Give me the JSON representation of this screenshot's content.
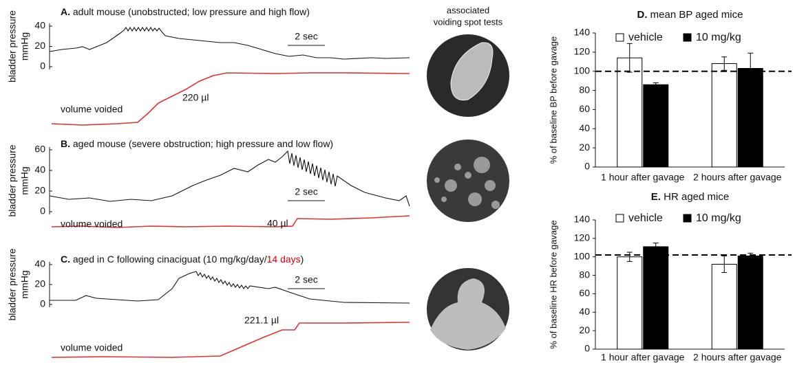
{
  "header": {
    "spot_title": [
      "associated",
      "voiding spot tests"
    ]
  },
  "traces": [
    {
      "label": "A.",
      "title": [
        "adult mouse (unobstructed; low pressure and high flow)"
      ],
      "title_colors": [
        "#111111"
      ],
      "y_label": [
        "bladder pressure",
        "mmHg"
      ],
      "ylim": [
        0,
        40
      ],
      "yticks": [
        0,
        20,
        40
      ],
      "scale_bar": "2 sec",
      "volume_label": "volume voided",
      "volume": "220 µl"
    },
    {
      "label": "B.",
      "title": [
        "aged mouse (severe obstruction; high pressure and low flow)"
      ],
      "title_colors": [
        "#111111"
      ],
      "y_label": [
        "bladder pressure",
        "mmHg"
      ],
      "ylim": [
        0,
        60
      ],
      "yticks": [
        0,
        20,
        40,
        60
      ],
      "scale_bar": "2 sec",
      "volume_label": "volume voided",
      "volume": "40 µl"
    },
    {
      "label": "C.",
      "title": [
        "aged in C following cinaciguat (10 mg/kg/day/",
        "14 days",
        ")"
      ],
      "title_colors": [
        "#111111",
        "#e00000",
        "#111111"
      ],
      "y_label": [
        "bladder pressure",
        "mmHg"
      ],
      "ylim": [
        0,
        40
      ],
      "yticks": [
        0,
        20,
        40
      ],
      "scale_bar": "2 sec",
      "volume_label": "volume voided",
      "volume": "221.1 µl"
    }
  ],
  "chart_data": [
    {
      "type": "bar",
      "panel_label": "D.",
      "title": "mean BP aged mice",
      "y_label": "% of baseline BP before gavage",
      "categories": [
        "1 hour after gavage",
        "2 hours after gavage"
      ],
      "series": [
        {
          "name": "vehicle",
          "color": "#ffffff",
          "values": [
            114,
            108
          ],
          "errors": [
            15,
            7
          ]
        },
        {
          "name": "10 mg/kg",
          "color": "#000000",
          "values": [
            86,
            103
          ],
          "errors": [
            2,
            16
          ]
        }
      ],
      "ylim": [
        0,
        140
      ],
      "yticks": [
        0,
        20,
        40,
        60,
        80,
        100,
        120,
        140
      ],
      "reference_line": 100,
      "legend": "top"
    },
    {
      "type": "bar",
      "panel_label": "E.",
      "title": "HR aged mice",
      "y_label": "% of baseline HR before gavage",
      "categories": [
        "1 hour after gavage",
        "2 hours after gavage"
      ],
      "series": [
        {
          "name": "vehicle",
          "color": "#ffffff",
          "values": [
            100,
            92
          ],
          "errors": [
            5,
            9
          ]
        },
        {
          "name": "10 mg/kg",
          "color": "#000000",
          "values": [
            111,
            101
          ],
          "errors": [
            4,
            3
          ]
        }
      ],
      "ylim": [
        0,
        140
      ],
      "yticks": [
        0,
        20,
        40,
        60,
        80,
        100,
        120,
        140
      ],
      "reference_line": 102,
      "legend": "top"
    }
  ]
}
